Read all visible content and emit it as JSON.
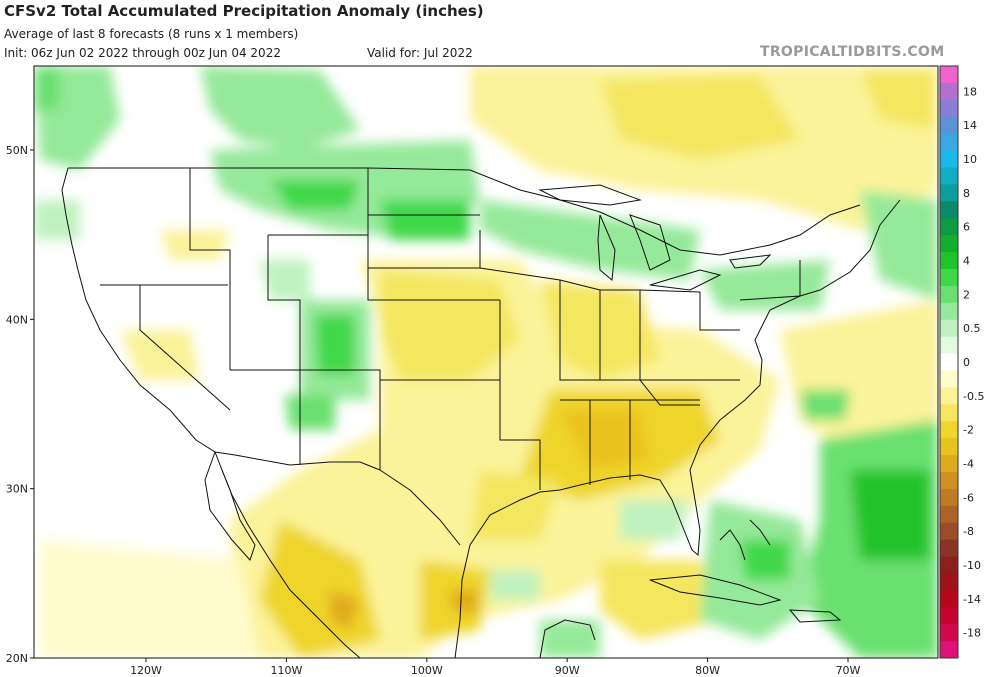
{
  "header": {
    "title": "CFSv2 Total Accumulated Precipitation Anomaly (inches)",
    "subtitle": "Average of last 8 forecasts (8 runs x 1 members)",
    "init": "Init: 06z Jun 02 2022 through 00z Jun 04 2022",
    "valid": "Valid for: Jul 2022",
    "brand": "TROPICALTIDBITS.COM"
  },
  "axes": {
    "lat_labels": [
      {
        "label": "50N",
        "value": 50
      },
      {
        "label": "40N",
        "value": 40
      },
      {
        "label": "30N",
        "value": 30
      },
      {
        "label": "20N",
        "value": 20
      }
    ],
    "lon_labels": [
      {
        "label": "120W",
        "value": -120
      },
      {
        "label": "110W",
        "value": -110
      },
      {
        "label": "100W",
        "value": -100
      },
      {
        "label": "90W",
        "value": -90
      },
      {
        "label": "80W",
        "value": -80
      },
      {
        "label": "70W",
        "value": -70
      }
    ],
    "lat_range": [
      20,
      54
    ],
    "lon_range": [
      -128,
      -63
    ]
  },
  "colorbar": {
    "bands": [
      {
        "color": "#f062ce",
        "label": ""
      },
      {
        "color": "#b46fd3",
        "label": "18"
      },
      {
        "color": "#8a7fd6",
        "label": ""
      },
      {
        "color": "#5a93d8",
        "label": "14"
      },
      {
        "color": "#3aa6e4",
        "label": ""
      },
      {
        "color": "#19b8ea",
        "label": "10"
      },
      {
        "color": "#11aec4",
        "label": ""
      },
      {
        "color": "#0c9d9c",
        "label": "8"
      },
      {
        "color": "#0d8a6a",
        "label": ""
      },
      {
        "color": "#0f9a45",
        "label": "6"
      },
      {
        "color": "#14ad2e",
        "label": ""
      },
      {
        "color": "#20c32a",
        "label": "4"
      },
      {
        "color": "#3fd848",
        "label": ""
      },
      {
        "color": "#6be070",
        "label": "2"
      },
      {
        "color": "#95e99a",
        "label": ""
      },
      {
        "color": "#bff2c0",
        "label": "0.5"
      },
      {
        "color": "#e2f9e2",
        "label": ""
      },
      {
        "color": "#ffffff",
        "label": "0"
      },
      {
        "color": "#fffbcc",
        "label": ""
      },
      {
        "color": "#fbf39a",
        "label": "-0.5"
      },
      {
        "color": "#f5e660",
        "label": ""
      },
      {
        "color": "#efd52c",
        "label": "-2"
      },
      {
        "color": "#e9c21d",
        "label": ""
      },
      {
        "color": "#deab1e",
        "label": "-4"
      },
      {
        "color": "#cf9222",
        "label": ""
      },
      {
        "color": "#bf7a26",
        "label": "-6"
      },
      {
        "color": "#ad6228",
        "label": ""
      },
      {
        "color": "#9c4c28",
        "label": "-8"
      },
      {
        "color": "#8c3424",
        "label": ""
      },
      {
        "color": "#8a1f1c",
        "label": "-10"
      },
      {
        "color": "#a0121a",
        "label": ""
      },
      {
        "color": "#b5081e",
        "label": "-14"
      },
      {
        "color": "#c4062f",
        "label": ""
      },
      {
        "color": "#d0084c",
        "label": "-18"
      },
      {
        "color": "#e0127a",
        "label": ""
      }
    ]
  },
  "colors": {
    "light_green": "#bff2c0",
    "mid_green": "#95e99a",
    "green": "#6be070",
    "bright_green": "#3fd848",
    "pale_yellow": "#fffbcc",
    "light_yellow": "#fbf39a",
    "yellow": "#f5e660",
    "gold": "#efd52c",
    "orange": "#deab1e",
    "brown": "#bf7a26",
    "border": "#111111"
  }
}
